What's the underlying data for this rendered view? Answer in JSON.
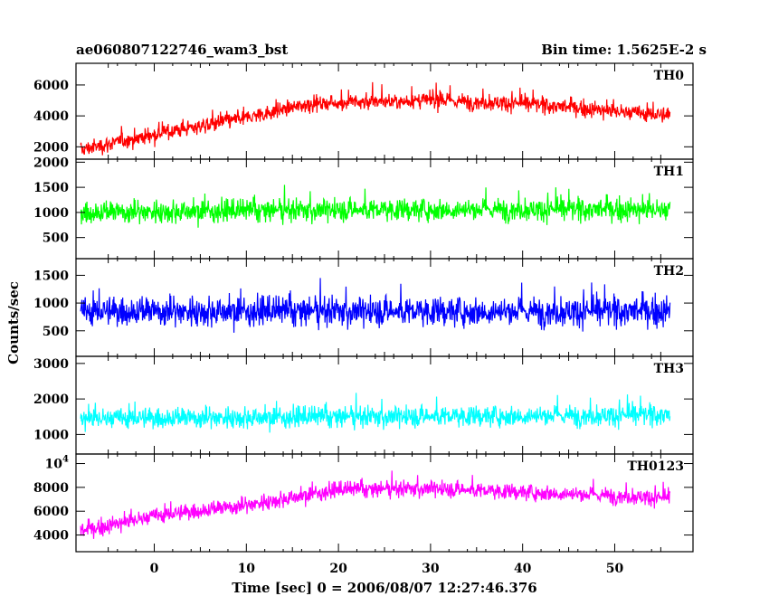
{
  "chart_data": {
    "type": "line",
    "title": "ae060807122746_wam3_bst",
    "subtitle": "Bin time: 1.5625E-2 s",
    "xlabel": "Time [sec] 0 = 2006/08/07 12:27:46.376",
    "ylabel": "Counts/sec",
    "xlim": [
      -8.5,
      58.5
    ],
    "x_ticks": [
      "0",
      "10",
      "20",
      "30",
      "40",
      "50"
    ],
    "x_data_range": [
      -8.0,
      56.0
    ],
    "grid": false,
    "panels": [
      {
        "name": "TH0",
        "color": "#ff0000",
        "ylim": [
          1200,
          7400
        ],
        "y_ticks": [
          "2000",
          "4000",
          "6000"
        ],
        "trend": [
          {
            "x": -8,
            "y": 1800
          },
          {
            "x": 0,
            "y": 2800
          },
          {
            "x": 10,
            "y": 3900
          },
          {
            "x": 17,
            "y": 4800
          },
          {
            "x": 30,
            "y": 5000
          },
          {
            "x": 40,
            "y": 4800
          },
          {
            "x": 50,
            "y": 4300
          },
          {
            "x": 56,
            "y": 4000
          }
        ],
        "noise_sigma": 650
      },
      {
        "name": "TH1",
        "color": "#00ff00",
        "ylim": [
          80,
          2060
        ],
        "y_ticks": [
          "500",
          "1000",
          "1500",
          "2000"
        ],
        "trend": [
          {
            "x": -8,
            "y": 1000
          },
          {
            "x": 20,
            "y": 1050
          },
          {
            "x": 40,
            "y": 1060
          },
          {
            "x": 56,
            "y": 1050
          }
        ],
        "noise_sigma": 280
      },
      {
        "name": "TH2",
        "color": "#0000ff",
        "ylim": [
          40,
          1800
        ],
        "y_ticks": [
          "500",
          "1000",
          "1500"
        ],
        "trend": [
          {
            "x": -8,
            "y": 850
          },
          {
            "x": 56,
            "y": 850
          }
        ],
        "noise_sigma": 330
      },
      {
        "name": "TH3",
        "color": "#00ffff",
        "ylim": [
          450,
          3200
        ],
        "y_ticks": [
          "1000",
          "2000",
          "3000"
        ],
        "trend": [
          {
            "x": -8,
            "y": 1450
          },
          {
            "x": 56,
            "y": 1550
          }
        ],
        "noise_sigma": 370
      },
      {
        "name": "TH0123",
        "color": "#ff00ff",
        "ylim": [
          2600,
          10800
        ],
        "y_ticks": [
          "4000",
          "6000",
          "8000",
          "10^4"
        ],
        "trend": [
          {
            "x": -8,
            "y": 4300
          },
          {
            "x": 0,
            "y": 5600
          },
          {
            "x": 10,
            "y": 6500
          },
          {
            "x": 20,
            "y": 7800
          },
          {
            "x": 30,
            "y": 7900
          },
          {
            "x": 40,
            "y": 7600
          },
          {
            "x": 50,
            "y": 7300
          },
          {
            "x": 56,
            "y": 7100
          }
        ],
        "noise_sigma": 850
      }
    ]
  }
}
